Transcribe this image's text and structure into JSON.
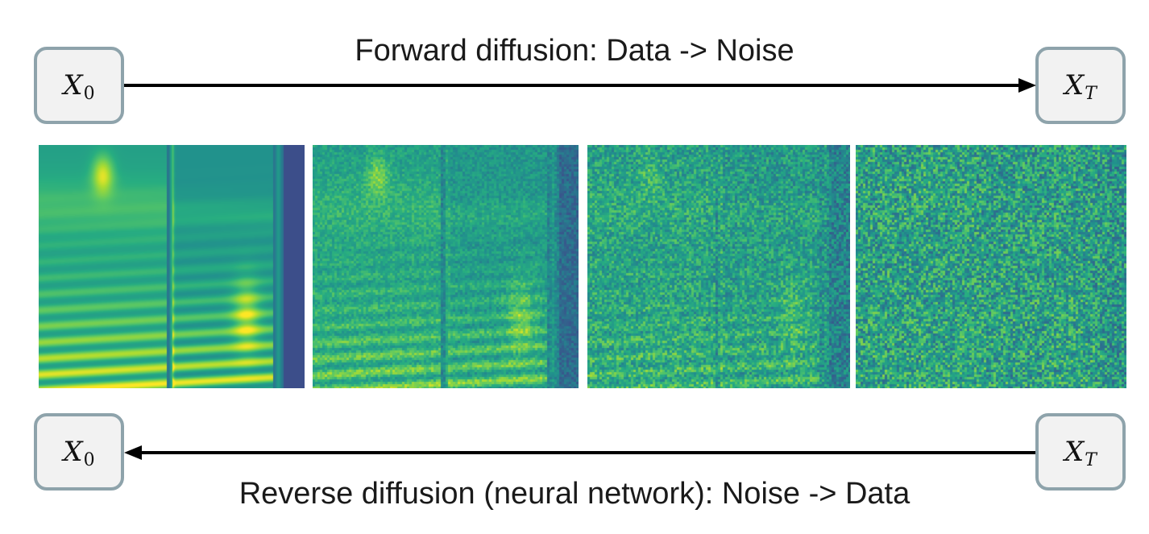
{
  "forward": {
    "caption": "Forward diffusion: Data -> Noise",
    "source": {
      "var": "X",
      "sub": "0"
    },
    "target": {
      "var": "X",
      "sub": "T"
    }
  },
  "reverse": {
    "caption": "Reverse diffusion (neural network): Noise -> Data",
    "source": {
      "var": "X",
      "sub": "T"
    },
    "target": {
      "var": "X",
      "sub": "0"
    }
  },
  "colors": {
    "node_border": "#8ea3ab",
    "node_fill": "#f2f2f2",
    "arrow": "#000000",
    "colormap": "viridis"
  },
  "spectrograms": [
    {
      "step": "clean",
      "noise_level": 0.0
    },
    {
      "step": "low-noise",
      "noise_level": 0.33
    },
    {
      "step": "mid-noise",
      "noise_level": 0.6
    },
    {
      "step": "pure-noise",
      "noise_level": 0.88
    }
  ]
}
